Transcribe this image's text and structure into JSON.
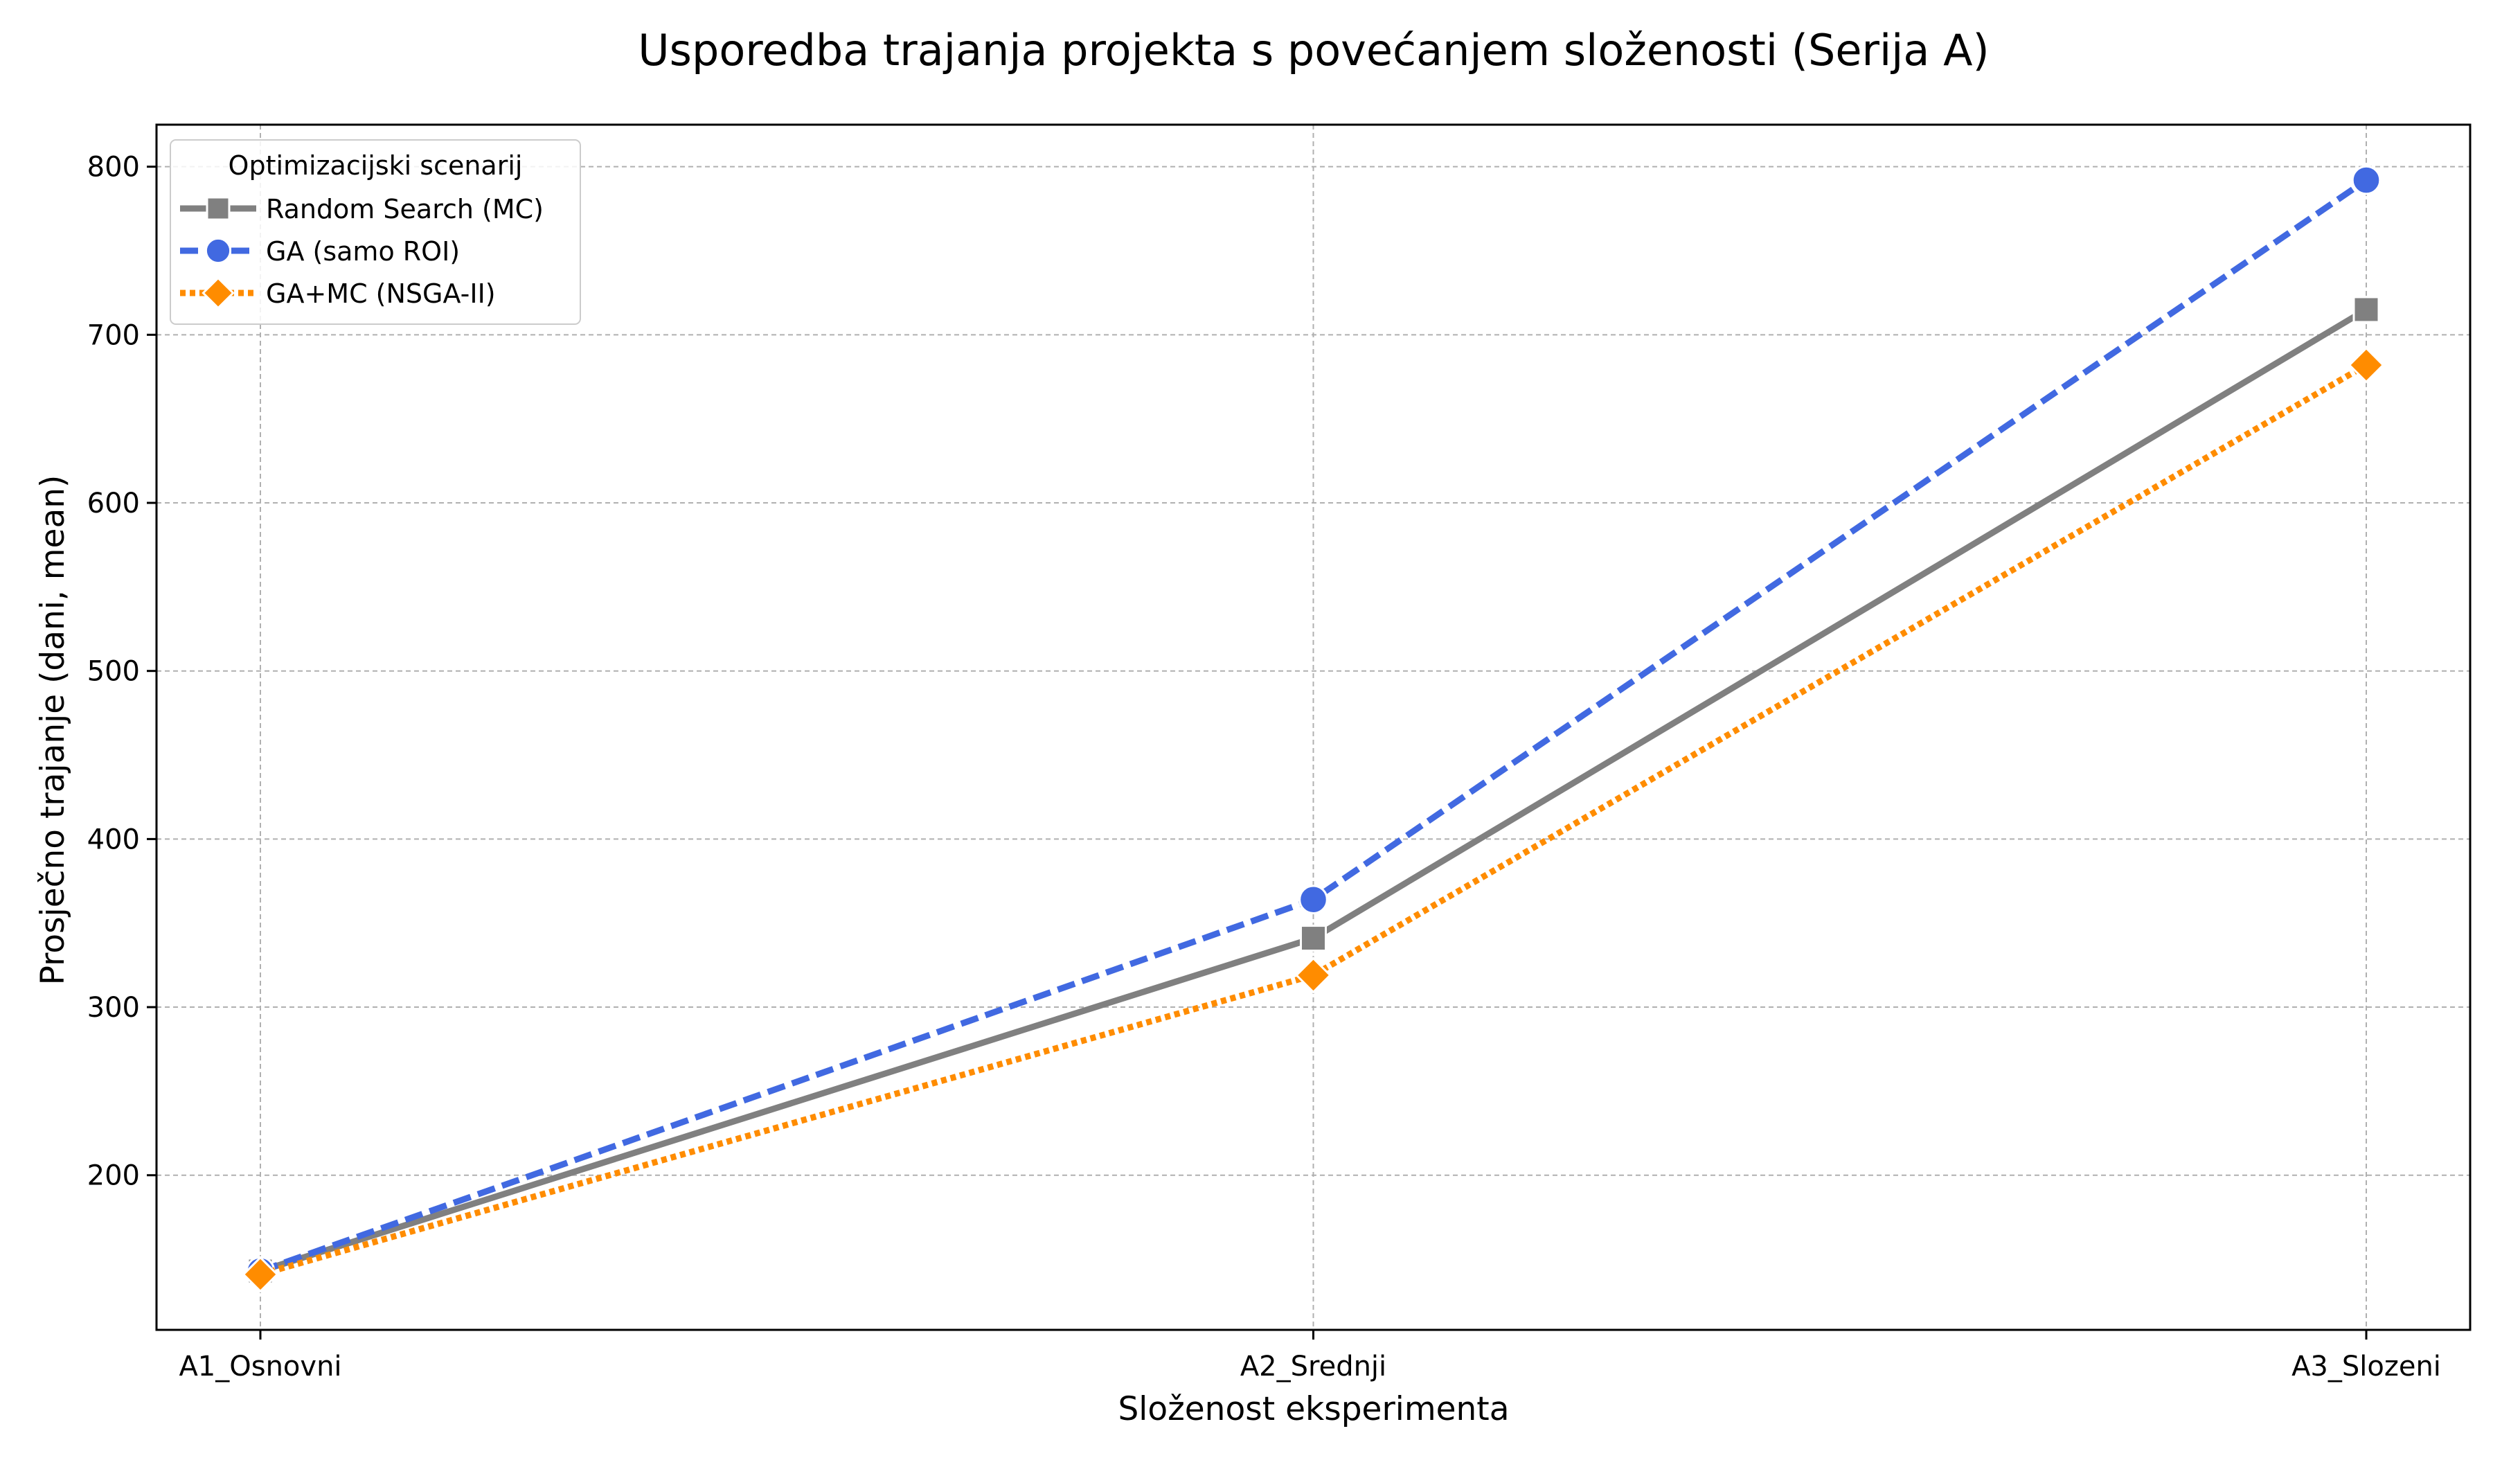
{
  "chart_data": {
    "type": "line",
    "title": "Usporedba trajanja projekta s povećanjem složenosti (Serija A)",
    "xlabel": "Složenost eksperimenta",
    "ylabel": "Prosječno trajanje (dani, mean)",
    "categories": [
      "A1_Osnovni",
      "A2_Srednji",
      "A3_Slozeni"
    ],
    "ylim": [
      108,
      825
    ],
    "yticks": [
      200,
      300,
      400,
      500,
      600,
      700,
      800
    ],
    "grid": true,
    "legend": {
      "title": "Optimizacijski scenarij",
      "placement": "top-left"
    },
    "series": [
      {
        "name": "Random Search (MC)",
        "values": [
          143,
          341,
          715
        ],
        "color": "#808080",
        "line_style": "solid",
        "marker": "square"
      },
      {
        "name": "GA (samo ROI)",
        "values": [
          143,
          364,
          792
        ],
        "color": "#4169e1",
        "line_style": "dashed",
        "marker": "circle"
      },
      {
        "name": "GA+MC (NSGA-II)",
        "values": [
          141,
          319,
          682
        ],
        "color": "#ff8c00",
        "line_style": "dotted",
        "marker": "diamond"
      }
    ]
  }
}
